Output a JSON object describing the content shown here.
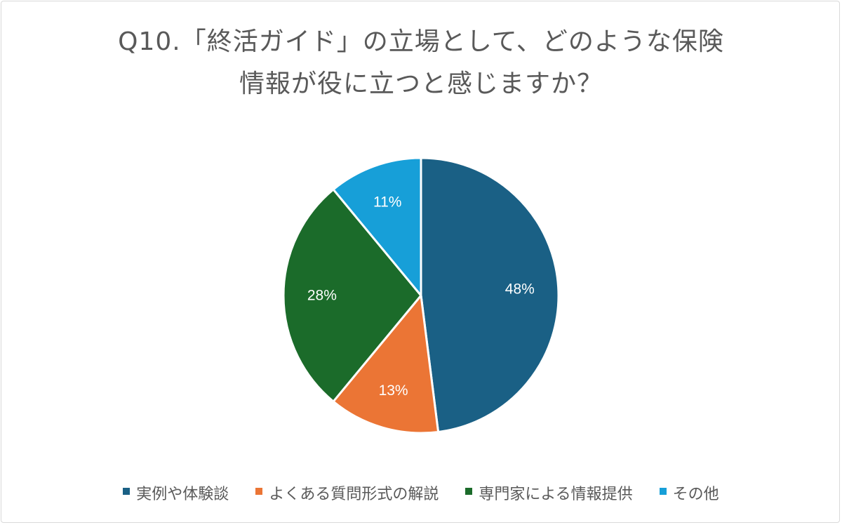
{
  "chart_data": {
    "type": "pie",
    "title": "Q10.「終活ガイド」の立場として、どのような保険情報が役に立つと感じますか？",
    "title_lines": [
      "Q10.「終活ガイド」の立場として、どのような保険",
      "情報が役に立つと感じますか？"
    ],
    "categories": [
      "実例や体験談",
      "よくある質問形式の解説",
      "専門家による情報提供",
      "その他"
    ],
    "values": [
      48,
      13,
      28,
      11
    ],
    "value_labels": [
      "48%",
      "13%",
      "28%",
      "11%"
    ],
    "unit": "%",
    "colors": [
      "#1a6085",
      "#eb7535",
      "#1b6b2a",
      "#179fd8"
    ],
    "legend_position": "bottom",
    "start_angle": "12 o'clock",
    "direction": "clockwise"
  }
}
